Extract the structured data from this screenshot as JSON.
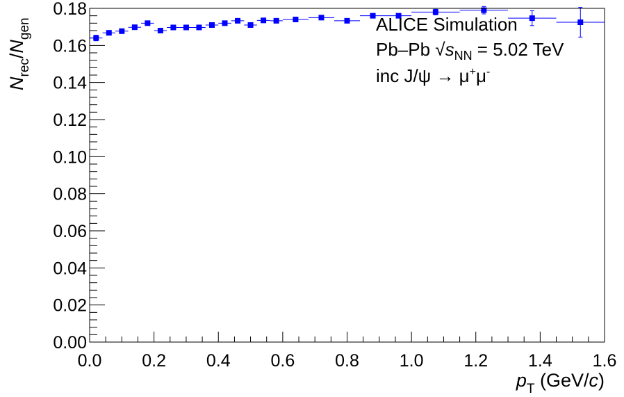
{
  "chart_data": {
    "type": "scatter",
    "xlabel": {
      "main": "p",
      "sub": "T",
      "unit_open": " (GeV/",
      "unit_italic": "c",
      "unit_close": ")"
    },
    "ylabel": {
      "num": "N",
      "num_sub": "rec",
      "slash": "/",
      "den": "N",
      "den_sub": "gen"
    },
    "xlim": [
      0,
      1.6
    ],
    "ylim": [
      0,
      0.18
    ],
    "x_ticks": [
      "0.0",
      "0.2",
      "0.4",
      "0.6",
      "0.8",
      "1.0",
      "1.2",
      "1.4",
      "1.6"
    ],
    "y_ticks": [
      "0.00",
      "0.02",
      "0.04",
      "0.06",
      "0.08",
      "0.10",
      "0.12",
      "0.14",
      "0.16",
      "0.18"
    ],
    "annotations": {
      "line1": "ALICE Simulation",
      "line2_prefix": "Pb–Pb ",
      "line2_sqrt": "√",
      "line2_s": "s",
      "line2_sub": "NN",
      "line2_suffix": " = 5.02 TeV",
      "line3": "inc J/ψ → μ",
      "line3_sup1": "+",
      "line3_mid": "μ",
      "line3_sup2": "-"
    },
    "colors": {
      "marker": "#0000ff",
      "axis": "#000000"
    },
    "series": [
      {
        "points": [
          {
            "x": 0.02,
            "xlo": 0.0,
            "xhi": 0.04,
            "y": 0.164,
            "yerr": 0.0015
          },
          {
            "x": 0.06,
            "xlo": 0.04,
            "xhi": 0.08,
            "y": 0.1668,
            "yerr": 0.001
          },
          {
            "x": 0.1,
            "xlo": 0.08,
            "xhi": 0.12,
            "y": 0.1677,
            "yerr": 0.0008
          },
          {
            "x": 0.14,
            "xlo": 0.12,
            "xhi": 0.16,
            "y": 0.1698,
            "yerr": 0.0008
          },
          {
            "x": 0.18,
            "xlo": 0.16,
            "xhi": 0.2,
            "y": 0.172,
            "yerr": 0.0008
          },
          {
            "x": 0.22,
            "xlo": 0.2,
            "xhi": 0.24,
            "y": 0.168,
            "yerr": 0.0008
          },
          {
            "x": 0.26,
            "xlo": 0.24,
            "xhi": 0.28,
            "y": 0.1697,
            "yerr": 0.0008
          },
          {
            "x": 0.3,
            "xlo": 0.28,
            "xhi": 0.32,
            "y": 0.1697,
            "yerr": 0.0008
          },
          {
            "x": 0.34,
            "xlo": 0.32,
            "xhi": 0.36,
            "y": 0.1697,
            "yerr": 0.0008
          },
          {
            "x": 0.38,
            "xlo": 0.36,
            "xhi": 0.4,
            "y": 0.171,
            "yerr": 0.0008
          },
          {
            "x": 0.42,
            "xlo": 0.4,
            "xhi": 0.44,
            "y": 0.172,
            "yerr": 0.0008
          },
          {
            "x": 0.46,
            "xlo": 0.44,
            "xhi": 0.48,
            "y": 0.1733,
            "yerr": 0.0008
          },
          {
            "x": 0.5,
            "xlo": 0.48,
            "xhi": 0.52,
            "y": 0.171,
            "yerr": 0.0008
          },
          {
            "x": 0.54,
            "xlo": 0.52,
            "xhi": 0.56,
            "y": 0.1735,
            "yerr": 0.0008
          },
          {
            "x": 0.58,
            "xlo": 0.56,
            "xhi": 0.6,
            "y": 0.1733,
            "yerr": 0.0008
          },
          {
            "x": 0.64,
            "xlo": 0.6,
            "xhi": 0.68,
            "y": 0.174,
            "yerr": 0.0008
          },
          {
            "x": 0.72,
            "xlo": 0.68,
            "xhi": 0.76,
            "y": 0.175,
            "yerr": 0.0008
          },
          {
            "x": 0.8,
            "xlo": 0.76,
            "xhi": 0.84,
            "y": 0.1733,
            "yerr": 0.001
          },
          {
            "x": 0.88,
            "xlo": 0.84,
            "xhi": 0.92,
            "y": 0.176,
            "yerr": 0.001
          },
          {
            "x": 0.96,
            "xlo": 0.92,
            "xhi": 1.0,
            "y": 0.176,
            "yerr": 0.0012
          },
          {
            "x": 1.075,
            "xlo": 1.0,
            "xhi": 1.15,
            "y": 0.178,
            "yerr": 0.0015
          },
          {
            "x": 1.225,
            "xlo": 1.15,
            "xhi": 1.3,
            "y": 0.179,
            "yerr": 0.002
          },
          {
            "x": 1.375,
            "xlo": 1.3,
            "xhi": 1.45,
            "y": 0.1747,
            "yerr": 0.004
          },
          {
            "x": 1.525,
            "xlo": 1.45,
            "xhi": 1.6,
            "y": 0.1725,
            "yerr": 0.008
          }
        ]
      }
    ]
  }
}
